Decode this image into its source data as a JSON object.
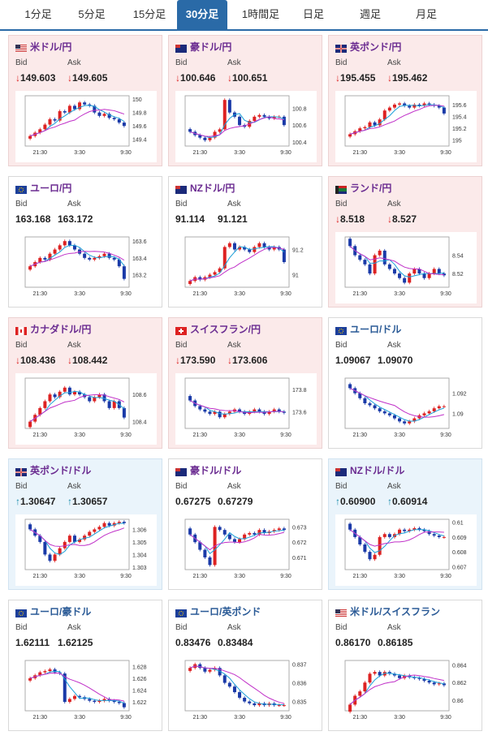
{
  "tabs": [
    "1分足",
    "5分足",
    "15分足",
    "30分足",
    "1時間足",
    "日足",
    "週足",
    "月足"
  ],
  "active_tab": "30分足",
  "labels": {
    "bid": "Bid",
    "ask": "Ask"
  },
  "x_ticks": [
    "21:30",
    "3:30",
    "9:30"
  ],
  "colors": {
    "down_bg": "#fbeaea",
    "up_bg": "#eaf4fb",
    "candle_up": "#d22",
    "candle_down": "#1a3aa8",
    "ma_fast": "#1a9fd8",
    "ma_slow": "#c030c8"
  },
  "cards": [
    {
      "name": "米ドル/円",
      "dir": "down",
      "bid": "149.603",
      "ask": "149.605",
      "title_color": "purple",
      "flag": "us",
      "yticks": [
        "150",
        "149.8",
        "149.6",
        "149.4"
      ],
      "chart_data": {
        "type": "candlestick",
        "close": [
          149.45,
          149.5,
          149.55,
          149.62,
          149.7,
          149.68,
          149.82,
          149.8,
          149.9,
          149.85,
          149.95,
          149.92,
          149.9,
          149.8,
          149.75,
          149.78,
          149.72,
          149.7,
          149.65,
          149.6
        ],
        "ylim": [
          149.3,
          150.05
        ]
      }
    },
    {
      "name": "豪ドル/円",
      "dir": "down",
      "bid": "100.646",
      "ask": "100.651",
      "title_color": "purple",
      "flag": "au",
      "yticks": [
        "100.8",
        "100.6",
        "100.4"
      ],
      "chart_data": {
        "type": "candlestick",
        "close": [
          100.52,
          100.48,
          100.45,
          100.42,
          100.45,
          100.52,
          100.55,
          100.9,
          100.75,
          100.7,
          100.6,
          100.58,
          100.65,
          100.7,
          100.72,
          100.7,
          100.68,
          100.7,
          100.7,
          100.6
        ],
        "ylim": [
          100.35,
          100.95
        ]
      }
    },
    {
      "name": "英ポンド/円",
      "dir": "down",
      "bid": "195.455",
      "ask": "195.462",
      "title_color": "purple",
      "flag": "gb",
      "yticks": [
        "195.6",
        "195.4",
        "195.2",
        "195"
      ],
      "chart_data": {
        "type": "candlestick",
        "close": [
          195.1,
          195.15,
          195.2,
          195.22,
          195.3,
          195.25,
          195.35,
          195.5,
          195.55,
          195.6,
          195.62,
          195.58,
          195.55,
          195.6,
          195.58,
          195.62,
          195.6,
          195.58,
          195.55,
          195.45
        ],
        "ylim": [
          194.9,
          195.75
        ]
      }
    },
    {
      "name": "ユーロ/円",
      "dir": "flat",
      "bid": "163.168",
      "ask": "163.172",
      "title_color": "purple",
      "flag": "eu",
      "yticks": [
        "163.6",
        "163.4",
        "163.2"
      ],
      "chart_data": {
        "type": "candlestick",
        "close": [
          163.3,
          163.35,
          163.4,
          163.38,
          163.45,
          163.5,
          163.55,
          163.6,
          163.55,
          163.5,
          163.45,
          163.4,
          163.38,
          163.4,
          163.42,
          163.45,
          163.4,
          163.38,
          163.3,
          163.15
        ],
        "ylim": [
          163.05,
          163.65
        ]
      }
    },
    {
      "name": "NZドル/円",
      "dir": "flat",
      "bid": "91.114",
      "ask": "91.121",
      "title_color": "purple",
      "flag": "nz",
      "yticks": [
        "91.2",
        "91"
      ],
      "chart_data": {
        "type": "candlestick",
        "close": [
          90.95,
          90.98,
          90.96,
          90.98,
          91.0,
          91.02,
          91.05,
          91.22,
          91.25,
          91.2,
          91.22,
          91.2,
          91.18,
          91.22,
          91.25,
          91.22,
          91.2,
          91.22,
          91.2,
          91.1
        ],
        "ylim": [
          90.9,
          91.3
        ]
      }
    },
    {
      "name": "ランド/円",
      "dir": "down",
      "bid": "8.518",
      "ask": "8.527",
      "title_color": "purple",
      "flag": "za",
      "yticks": [
        "8.54",
        "8.52"
      ],
      "chart_data": {
        "type": "candlestick",
        "close": [
          8.55,
          8.54,
          8.535,
          8.53,
          8.52,
          8.54,
          8.545,
          8.53,
          8.525,
          8.52,
          8.515,
          8.51,
          8.52,
          8.525,
          8.52,
          8.515,
          8.52,
          8.525,
          8.52,
          8.518
        ],
        "ylim": [
          8.505,
          8.56
        ]
      }
    },
    {
      "name": "カナダドル/円",
      "dir": "down",
      "bid": "108.436",
      "ask": "108.442",
      "title_color": "purple",
      "flag": "ca",
      "yticks": [
        "108.6",
        "108.4"
      ],
      "chart_data": {
        "type": "candlestick",
        "close": [
          108.4,
          108.45,
          108.5,
          108.55,
          108.6,
          108.58,
          108.62,
          108.65,
          108.6,
          108.62,
          108.6,
          108.58,
          108.55,
          108.58,
          108.6,
          108.55,
          108.5,
          108.55,
          108.5,
          108.43
        ],
        "ylim": [
          108.35,
          108.72
        ]
      }
    },
    {
      "name": "スイスフラン/円",
      "dir": "down",
      "bid": "173.590",
      "ask": "173.606",
      "title_color": "purple",
      "flag": "ch",
      "yticks": [
        "173.8",
        "173.6"
      ],
      "chart_data": {
        "type": "candlestick",
        "close": [
          173.7,
          173.65,
          173.62,
          173.6,
          173.58,
          173.6,
          173.55,
          173.58,
          173.6,
          173.62,
          173.6,
          173.58,
          173.6,
          173.62,
          173.6,
          173.58,
          173.6,
          173.62,
          173.6,
          173.59
        ],
        "ylim": [
          173.45,
          173.9
        ]
      }
    },
    {
      "name": "ユーロ/ドル",
      "dir": "flat",
      "bid": "1.09067",
      "ask": "1.09070",
      "title_color": "blue",
      "flag": "eu",
      "yticks": [
        "1.092",
        "1.09"
      ],
      "chart_data": {
        "type": "candlestick",
        "close": [
          1.0925,
          1.092,
          1.0915,
          1.091,
          1.0908,
          1.0905,
          1.0902,
          1.09,
          1.0898,
          1.0895,
          1.0892,
          1.089,
          1.0892,
          1.0895,
          1.0898,
          1.09,
          1.0902,
          1.0905,
          1.0907,
          1.0907
        ],
        "ylim": [
          1.0885,
          1.0935
        ]
      }
    },
    {
      "name": "英ポンド/ドル",
      "dir": "up",
      "bid": "1.30647",
      "ask": "1.30657",
      "title_color": "purple",
      "flag": "gb",
      "yticks": [
        "1.306",
        "1.305",
        "1.304",
        "1.303"
      ],
      "chart_data": {
        "type": "candlestick",
        "close": [
          1.306,
          1.3055,
          1.305,
          1.304,
          1.3035,
          1.304,
          1.3045,
          1.305,
          1.3055,
          1.305,
          1.3052,
          1.3055,
          1.3058,
          1.306,
          1.3062,
          1.3065,
          1.3063,
          1.3065,
          1.3066,
          1.3065
        ],
        "ylim": [
          1.3028,
          1.3068
        ]
      }
    },
    {
      "name": "豪ドル/ドル",
      "dir": "flat",
      "bid": "0.67275",
      "ask": "0.67279",
      "title_color": "purple",
      "flag": "au",
      "yticks": [
        "0.673",
        "0.672",
        "0.671"
      ],
      "chart_data": {
        "type": "candlestick",
        "close": [
          0.6725,
          0.672,
          0.6715,
          0.671,
          0.6705,
          0.673,
          0.6728,
          0.6725,
          0.6722,
          0.672,
          0.6722,
          0.6725,
          0.6726,
          0.6725,
          0.6728,
          0.6726,
          0.6727,
          0.6728,
          0.6729,
          0.6728
        ],
        "ylim": [
          0.6702,
          0.6735
        ]
      }
    },
    {
      "name": "NZドル/ドル",
      "dir": "up",
      "bid": "0.60900",
      "ask": "0.60914",
      "title_color": "purple",
      "flag": "nz",
      "yticks": [
        "0.61",
        "0.609",
        "0.608",
        "0.607"
      ],
      "chart_data": {
        "type": "candlestick",
        "close": [
          0.6095,
          0.609,
          0.6085,
          0.608,
          0.6075,
          0.6078,
          0.609,
          0.6092,
          0.609,
          0.6092,
          0.6095,
          0.6094,
          0.6095,
          0.6096,
          0.6095,
          0.6094,
          0.6092,
          0.6091,
          0.609,
          0.609
        ],
        "ylim": [
          0.6068,
          0.6102
        ]
      }
    },
    {
      "name": "ユーロ/豪ドル",
      "dir": "flat",
      "bid": "1.62111",
      "ask": "1.62125",
      "title_color": "blue",
      "flag": "eu",
      "yticks": [
        "1.628",
        "1.626",
        "1.624",
        "1.622"
      ],
      "chart_data": {
        "type": "candlestick",
        "close": [
          1.626,
          1.6265,
          1.627,
          1.6272,
          1.6275,
          1.627,
          1.6268,
          1.622,
          1.6225,
          1.623,
          1.6228,
          1.6225,
          1.6222,
          1.622,
          1.6222,
          1.6225,
          1.6222,
          1.622,
          1.6218,
          1.6211
        ],
        "ylim": [
          1.6205,
          1.629
        ]
      }
    },
    {
      "name": "ユーロ/英ポンド",
      "dir": "flat",
      "bid": "0.83476",
      "ask": "0.83484",
      "title_color": "blue",
      "flag": "eu",
      "yticks": [
        "0.837",
        "0.836",
        "0.835"
      ],
      "chart_data": {
        "type": "candlestick",
        "close": [
          0.8368,
          0.837,
          0.8368,
          0.8366,
          0.8367,
          0.8368,
          0.8364,
          0.836,
          0.8358,
          0.8355,
          0.8352,
          0.835,
          0.8349,
          0.8348,
          0.8349,
          0.8348,
          0.8349,
          0.8348,
          0.8348,
          0.8348
        ],
        "ylim": [
          0.8345,
          0.8372
        ]
      }
    },
    {
      "name": "米ドル/スイスフラン",
      "dir": "flat",
      "bid": "0.86170",
      "ask": "0.86185",
      "title_color": "blue",
      "flag": "us",
      "yticks": [
        "0.864",
        "0.862",
        "0.86"
      ],
      "chart_data": {
        "type": "candlestick",
        "close": [
          0.8595,
          0.8605,
          0.861,
          0.862,
          0.863,
          0.8632,
          0.8628,
          0.8632,
          0.863,
          0.8628,
          0.8625,
          0.8628,
          0.8626,
          0.8625,
          0.8624,
          0.8622,
          0.862,
          0.8618,
          0.8619,
          0.8617
        ],
        "ylim": [
          0.8588,
          0.8645
        ]
      }
    }
  ]
}
